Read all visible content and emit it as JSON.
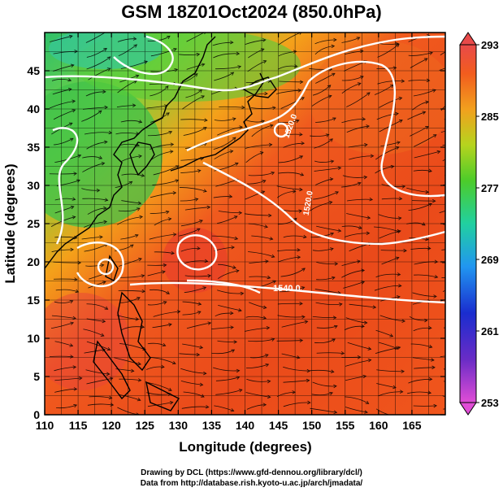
{
  "title": "GSM 18Z01Oct2024 (850.0hPa)",
  "xlabel": "Longitude (degrees)",
  "ylabel": "Latitude  (degrees)",
  "x_ticks": [
    "110",
    "115",
    "120",
    "125",
    "130",
    "135",
    "140",
    "145",
    "150",
    "155",
    "160",
    "165"
  ],
  "y_ticks": [
    "0",
    "5",
    "10",
    "15",
    "20",
    "25",
    "30",
    "35",
    "40",
    "45"
  ],
  "xlim": [
    110,
    170
  ],
  "ylim": [
    0,
    50
  ],
  "colorbar": {
    "labels": [
      "253",
      "261",
      "269",
      "277",
      "285",
      "293"
    ],
    "range": [
      253,
      293
    ]
  },
  "contour_labels": [
    "1520.0",
    "1520.0",
    "1540.0"
  ],
  "credits": [
    "Drawing by DCL (https://www.gfd-dennou.org/library/dcl/)",
    "Data from http://database.rish.kyoto-u.ac.jp/arch/jmadata/"
  ]
}
